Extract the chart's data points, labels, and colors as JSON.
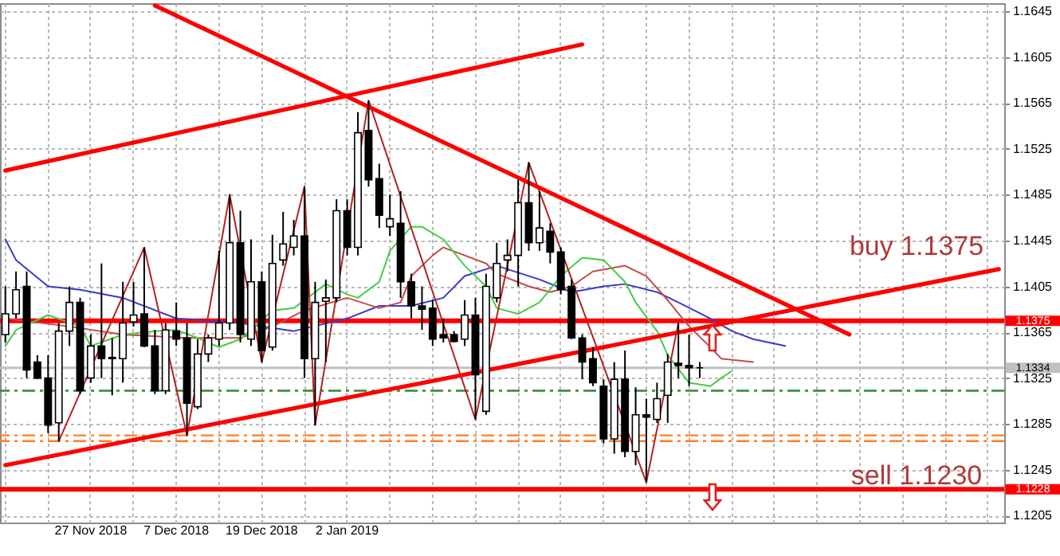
{
  "chart_data": {
    "type": "candlestick",
    "categories": [
      null,
      null,
      null,
      null,
      null,
      null,
      null,
      null,
      "27 Nov 2018",
      null,
      null,
      null,
      null,
      null,
      null,
      null,
      "7 Dec 2018",
      null,
      null,
      null,
      null,
      null,
      null,
      null,
      "19 Dec 2018",
      null,
      null,
      null,
      null,
      null,
      null,
      null,
      "2 Jan 2019",
      null,
      null,
      null,
      null,
      null,
      null,
      null,
      null,
      null,
      null,
      null,
      null,
      null,
      null,
      null,
      null,
      null,
      null,
      null,
      null,
      null,
      null,
      null,
      null,
      null,
      null,
      null,
      null,
      null,
      null,
      null,
      null,
      null,
      null,
      null,
      null,
      null,
      null,
      null,
      null,
      null,
      null,
      null,
      null,
      null,
      null,
      null,
      null,
      null,
      null,
      null,
      null,
      null,
      null,
      null,
      null,
      null,
      null,
      null,
      null,
      null
    ],
    "ohlc": [
      [
        1.1363,
        1.1405,
        1.1356,
        1.1381
      ],
      [
        1.1381,
        1.1418,
        1.1377,
        1.1402
      ],
      [
        1.1405,
        1.1418,
        1.1325,
        1.1332
      ],
      [
        1.1339,
        1.1345,
        1.1324,
        1.1325
      ],
      [
        1.1325,
        1.1345,
        1.1277,
        1.1284
      ],
      [
        1.1286,
        1.1373,
        1.127,
        1.1366
      ],
      [
        1.1366,
        1.1405,
        1.1353,
        1.1391
      ],
      [
        1.1391,
        1.1395,
        1.1311,
        1.1314
      ],
      [
        1.1325,
        1.1363,
        1.1321,
        1.1353
      ],
      [
        1.1353,
        1.1425,
        1.1325,
        1.1342
      ],
      [
        1.1342,
        1.136,
        1.131,
        1.1343
      ],
      [
        1.1342,
        1.1409,
        1.1321,
        1.1373
      ],
      [
        1.1374,
        1.1409,
        1.137,
        1.138
      ],
      [
        1.1381,
        1.1439,
        1.1352,
        1.1353
      ],
      [
        1.1353,
        1.1367,
        1.1311,
        1.1314
      ],
      [
        1.1314,
        1.1373,
        1.1311,
        1.1367
      ],
      [
        1.1366,
        1.1391,
        1.1353,
        1.1359
      ],
      [
        1.136,
        1.1373,
        1.1275,
        1.1303
      ],
      [
        1.13,
        1.1359,
        1.1298,
        1.1346
      ],
      [
        1.1346,
        1.1363,
        1.1339,
        1.136
      ],
      [
        1.1359,
        1.1436,
        1.1353,
        1.1373
      ],
      [
        1.1373,
        1.1485,
        1.1367,
        1.1443
      ],
      [
        1.1443,
        1.1471,
        1.1356,
        1.1363
      ],
      [
        1.1359,
        1.1446,
        1.1353,
        1.1409
      ],
      [
        1.1409,
        1.1418,
        1.1339,
        1.1349
      ],
      [
        1.1352,
        1.145,
        1.1349,
        1.1425
      ],
      [
        1.1428,
        1.147,
        1.1423,
        1.1442
      ],
      [
        1.1439,
        1.1463,
        1.1432,
        1.1449
      ],
      [
        1.1449,
        1.1492,
        1.1325,
        1.1342
      ],
      [
        1.1342,
        1.1409,
        1.1284,
        1.1391
      ],
      [
        1.1392,
        1.1411,
        1.1339,
        1.1395
      ],
      [
        1.1395,
        1.1481,
        1.1391,
        1.1471
      ],
      [
        1.1471,
        1.1481,
        1.1432,
        1.1439
      ],
      [
        1.1439,
        1.1557,
        1.1432,
        1.1539
      ],
      [
        1.1541,
        1.1567,
        1.1492,
        1.1498
      ],
      [
        1.1499,
        1.1512,
        1.1456,
        1.1467
      ],
      [
        1.1457,
        1.1485,
        1.1449,
        1.1464
      ],
      [
        1.146,
        1.1488,
        1.1395,
        1.1409
      ],
      [
        1.1409,
        1.1416,
        1.1377,
        1.1388
      ],
      [
        1.1388,
        1.1405,
        1.1367,
        1.1385
      ],
      [
        1.1386,
        1.1393,
        1.1353,
        1.1359
      ],
      [
        1.1363,
        1.1377,
        1.1356,
        1.136
      ],
      [
        1.1363,
        1.1366,
        1.1356,
        1.1357
      ],
      [
        1.1359,
        1.1393,
        1.1353,
        1.138
      ],
      [
        1.138,
        1.1395,
        1.1289,
        1.1328
      ],
      [
        1.1296,
        1.1416,
        1.1293,
        1.1405
      ],
      [
        1.1395,
        1.1443,
        1.1391,
        1.1425
      ],
      [
        1.1428,
        1.1446,
        1.1418,
        1.1432
      ],
      [
        1.1432,
        1.1498,
        1.1405,
        1.1478
      ],
      [
        1.1478,
        1.1513,
        1.1436,
        1.1443
      ],
      [
        1.1443,
        1.1488,
        1.1436,
        1.1456
      ],
      [
        1.1453,
        1.146,
        1.1425,
        1.1435
      ],
      [
        1.1435,
        1.1439,
        1.1398,
        1.1402
      ],
      [
        1.1405,
        1.1411,
        1.1359,
        1.136
      ],
      [
        1.136,
        1.1363,
        1.1324,
        1.1339
      ],
      [
        1.1342,
        1.1352,
        1.1318,
        1.1321
      ],
      [
        1.1318,
        1.1324,
        1.1268,
        1.1272
      ],
      [
        1.1272,
        1.1339,
        1.1259,
        1.1324
      ],
      [
        1.1324,
        1.1349,
        1.1256,
        1.1261
      ],
      [
        1.1261,
        1.1317,
        1.1249,
        1.1293
      ],
      [
        1.1293,
        1.1307,
        1.1234,
        1.1291
      ],
      [
        1.1289,
        1.1321,
        1.1286,
        1.1307
      ],
      [
        1.131,
        1.1346,
        1.1286,
        1.1339
      ],
      [
        1.1338,
        1.1373,
        1.1325,
        1.1336
      ],
      [
        1.1336,
        1.1363,
        1.1318,
        1.1334
      ],
      [
        1.1334,
        1.1339,
        1.1325,
        1.1334
      ],
      null,
      null,
      null,
      null,
      null,
      null,
      null,
      null,
      null,
      null,
      null,
      null,
      null,
      null,
      null,
      null,
      null,
      null,
      null,
      null,
      null,
      null,
      null,
      null,
      null,
      null,
      null,
      null
    ],
    "series": [
      {
        "type": "line",
        "color": "#3a3acc",
        "values": [
          1.1446,
          1.1428,
          null,
          null,
          1.1405,
          null,
          null,
          1.1402,
          null,
          null,
          null,
          1.1395,
          null,
          null,
          null,
          null,
          1.1377,
          null,
          null,
          null,
          null,
          null,
          1.1373,
          null,
          null,
          null,
          null,
          1.1366,
          null,
          null,
          null,
          null,
          1.1377,
          null,
          null,
          1.1388,
          null,
          null,
          1.1388,
          null,
          null,
          1.1395,
          null,
          1.1414,
          null,
          null,
          1.1423,
          null,
          null,
          null,
          1.1411,
          null,
          null,
          1.14,
          null,
          null,
          1.1405,
          null,
          1.1407,
          null,
          null,
          1.14,
          null,
          1.1391,
          null,
          null,
          1.1377,
          null,
          1.1366,
          null,
          1.1359,
          null,
          null,
          1.1353,
          null,
          null,
          null,
          null,
          null,
          null,
          null,
          null,
          null,
          null,
          null,
          null,
          null,
          null,
          null,
          null,
          null,
          null,
          null,
          null
        ]
      },
      {
        "type": "line",
        "color": "#c84848",
        "values": [
          1.1377,
          null,
          null,
          null,
          null,
          null,
          1.137,
          null,
          null,
          null,
          null,
          1.1363,
          null,
          null,
          null,
          null,
          null,
          1.136,
          null,
          null,
          null,
          null,
          1.136,
          null,
          null,
          1.137,
          null,
          null,
          1.1384,
          null,
          null,
          null,
          1.1395,
          null,
          null,
          1.1386,
          null,
          1.1391,
          1.1414,
          null,
          1.1432,
          1.1439,
          null,
          1.1432,
          null,
          1.1425,
          1.1416,
          null,
          null,
          1.1405,
          null,
          1.14,
          null,
          1.1405,
          null,
          1.1418,
          null,
          null,
          1.1423,
          null,
          1.1414,
          null,
          1.1393,
          null,
          1.137,
          null,
          1.1352,
          1.1342,
          null,
          null,
          1.1339,
          null,
          null,
          null,
          null,
          null,
          null,
          null,
          null,
          null,
          null,
          null,
          null,
          null,
          null,
          null,
          null,
          null,
          null,
          null,
          null,
          null,
          null,
          null
        ]
      },
      {
        "type": "line",
        "color": "#44cc44",
        "values": [
          1.1353,
          1.1367,
          null,
          null,
          1.138,
          null,
          null,
          1.137,
          1.1353,
          null,
          null,
          1.1363,
          null,
          null,
          1.1366,
          null,
          1.1367,
          null,
          1.136,
          null,
          1.1352,
          null,
          1.1359,
          1.1367,
          null,
          1.1384,
          null,
          1.1386,
          null,
          1.14,
          1.1407,
          null,
          1.1398,
          1.1395,
          null,
          1.1409,
          1.1436,
          null,
          1.1457,
          1.1457,
          null,
          1.1446,
          null,
          1.1423,
          null,
          1.1405,
          1.1386,
          null,
          1.1381,
          null,
          1.1391,
          null,
          1.1414,
          null,
          1.143,
          null,
          1.1428,
          null,
          1.1409,
          1.1391,
          null,
          1.1366,
          1.1345,
          null,
          1.1321,
          null,
          1.1318,
          1.1325,
          1.1331,
          null,
          null,
          null,
          null,
          null,
          null,
          null,
          null,
          null,
          null,
          null,
          null,
          null,
          null,
          null,
          null,
          null,
          null,
          null,
          null,
          null,
          null,
          null,
          null,
          null
        ]
      },
      {
        "type": "line",
        "color": "#b22222",
        "values": [
          null,
          null,
          null,
          null,
          null,
          1.127,
          null,
          null,
          null,
          null,
          null,
          null,
          null,
          1.1439,
          null,
          null,
          null,
          1.1275,
          null,
          null,
          null,
          1.1485,
          null,
          null,
          1.1339,
          null,
          null,
          null,
          1.1492,
          1.1284,
          null,
          null,
          null,
          null,
          1.1567,
          null,
          null,
          null,
          null,
          null,
          null,
          null,
          null,
          null,
          1.1289,
          null,
          null,
          null,
          null,
          1.1513,
          null,
          null,
          null,
          null,
          null,
          null,
          null,
          null,
          null,
          null,
          1.1234,
          null,
          null,
          1.1373,
          null,
          null,
          null,
          null,
          null,
          null,
          null,
          null,
          null,
          null,
          null,
          null,
          null,
          null,
          null,
          null,
          null,
          null,
          null,
          null,
          null,
          null,
          null,
          null,
          null,
          null,
          null,
          null,
          null,
          null
        ]
      },
      {
        "type": "line",
        "color": "#ff0000",
        "values": [
          1.1506,
          null,
          null,
          null,
          null,
          null,
          null,
          null,
          null,
          null,
          null,
          null,
          null,
          null,
          null,
          null,
          null,
          null,
          null,
          null,
          null,
          null,
          null,
          null,
          null,
          null,
          null,
          null,
          null,
          null,
          null,
          null,
          null,
          null,
          null,
          null,
          null,
          null,
          null,
          null,
          null,
          null,
          null,
          null,
          null,
          null,
          null,
          null,
          null,
          null,
          null,
          null,
          null,
          null,
          1.1616,
          null,
          null,
          null,
          null,
          null,
          null,
          null,
          null,
          null,
          null,
          null,
          null,
          null,
          null,
          null,
          null,
          null,
          null,
          null,
          null,
          null,
          null,
          null,
          null,
          null,
          null,
          null,
          null,
          null,
          null,
          null,
          null,
          null,
          null,
          null,
          null,
          null,
          null,
          null
        ]
      },
      {
        "type": "line",
        "color": "#ff0000",
        "values": [
          null,
          null,
          null,
          null,
          null,
          null,
          null,
          null,
          null,
          null,
          null,
          null,
          null,
          null,
          1.165,
          null,
          null,
          null,
          null,
          null,
          null,
          null,
          null,
          null,
          null,
          null,
          null,
          null,
          null,
          null,
          null,
          null,
          null,
          null,
          null,
          null,
          null,
          null,
          null,
          null,
          null,
          null,
          null,
          null,
          null,
          null,
          null,
          null,
          null,
          null,
          null,
          null,
          null,
          null,
          null,
          null,
          null,
          null,
          null,
          null,
          null,
          null,
          null,
          null,
          null,
          null,
          null,
          null,
          null,
          null,
          null,
          null,
          null,
          null,
          null,
          null,
          null,
          null,
          null,
          1.1363,
          null,
          null,
          null,
          null,
          null,
          null,
          null,
          null,
          null,
          null,
          null,
          null,
          null,
          null
        ]
      },
      {
        "type": "line",
        "color": "#ff0000",
        "values": [
          1.1249,
          null,
          null,
          null,
          null,
          null,
          null,
          null,
          null,
          null,
          null,
          null,
          null,
          null,
          null,
          null,
          null,
          null,
          null,
          null,
          null,
          null,
          null,
          null,
          null,
          null,
          null,
          null,
          null,
          null,
          null,
          null,
          null,
          null,
          null,
          null,
          null,
          null,
          null,
          null,
          null,
          null,
          null,
          null,
          null,
          null,
          null,
          null,
          null,
          null,
          null,
          null,
          null,
          null,
          null,
          null,
          null,
          null,
          null,
          null,
          null,
          null,
          null,
          null,
          null,
          null,
          null,
          null,
          null,
          null,
          null,
          null,
          null,
          null,
          null,
          null,
          null,
          null,
          null,
          null,
          null,
          null,
          null,
          null,
          null,
          null,
          null,
          null,
          null,
          null,
          null,
          null,
          null,
          1.142
        ]
      }
    ],
    "ylim": [
      1.1199,
      1.1652
    ],
    "yticks": [
      1.1205,
      1.1245,
      1.1285,
      1.1325,
      1.1365,
      1.1405,
      1.1445,
      1.1485,
      1.1525,
      1.1565,
      1.1605,
      1.1645
    ],
    "grid": true,
    "ref_lines": [
      {
        "axis": "y",
        "value": 1.1375,
        "label": "1.1375",
        "color": "#ff0000",
        "line_style": "solid"
      },
      {
        "axis": "y",
        "value": 1.1334,
        "label": "1.1334",
        "color": "#c0c0c0",
        "line_style": "solid"
      },
      {
        "axis": "y",
        "value": 1.1228,
        "label": "1.1228",
        "color": "#ff0000",
        "line_style": "solid"
      },
      {
        "axis": "y",
        "value": 1.1314,
        "color": "#2e8b2e",
        "line_style": "dashed"
      },
      {
        "axis": "y",
        "value": 1.1275,
        "color": "#ff7f27",
        "line_style": "dashed"
      },
      {
        "axis": "y",
        "value": 1.127,
        "color": "#ff7f27",
        "line_style": "dashed"
      }
    ],
    "annotations": [
      "buy 1.1375",
      "sell 1.1230"
    ]
  }
}
